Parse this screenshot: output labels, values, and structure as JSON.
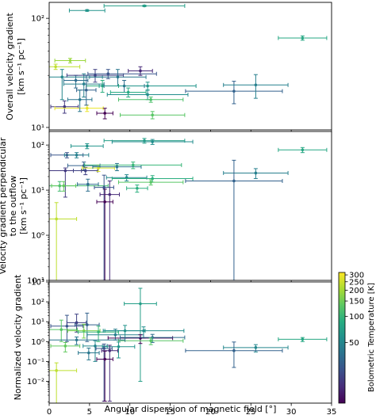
{
  "chart_data": [
    {
      "type": "scatter",
      "ylabel_lines": [
        "Overall velocity gradient",
        "[km s⁻¹ pc⁻¹]"
      ],
      "yscale": "log",
      "ylim": [
        9.5,
        140
      ],
      "yticks": [
        {
          "v": 10,
          "label": "10¹"
        },
        {
          "v": 100,
          "label": "10²"
        }
      ],
      "points": [
        {
          "x": 4.7,
          "y": 118,
          "xe": [
            2.2,
            2.2
          ],
          "ye": [
            2,
            2
          ],
          "t": 60
        },
        {
          "x": 11.8,
          "y": 130,
          "xe": [
            5,
            5
          ],
          "ye": [
            2,
            2
          ],
          "t": 70
        },
        {
          "x": 31.4,
          "y": 66,
          "xe": [
            3,
            3
          ],
          "ye": [
            3,
            3
          ],
          "t": 80
        },
        {
          "x": 2.6,
          "y": 41,
          "xe": [
            1.9,
            1.9
          ],
          "ye": [
            2,
            2
          ],
          "t": 190
        },
        {
          "x": 0.8,
          "y": 36,
          "xe": [
            0.8,
            3
          ],
          "ye": [
            2,
            2
          ],
          "t": 230
        },
        {
          "x": 1.6,
          "y": 29,
          "xe": [
            1.6,
            5
          ],
          "ye": [
            11,
            5
          ],
          "t": 50
        },
        {
          "x": 3.3,
          "y": 27,
          "xe": [
            1.5,
            1.5
          ],
          "ye": [
            4,
            3
          ],
          "t": 35
        },
        {
          "x": 4.3,
          "y": 25,
          "xe": [
            2.5,
            2.5
          ],
          "ye": [
            6,
            6
          ],
          "t": 45
        },
        {
          "x": 5.7,
          "y": 30,
          "xe": [
            3.5,
            3.5
          ],
          "ye": [
            4,
            4
          ],
          "t": 20
        },
        {
          "x": 8.5,
          "y": 29,
          "xe": [
            3.5,
            3.5
          ],
          "ye": [
            5,
            5
          ],
          "t": 40
        },
        {
          "x": 7.3,
          "y": 31,
          "xe": [
            2.5,
            6
          ],
          "ye": [
            3,
            3
          ],
          "t": 25
        },
        {
          "x": 11.3,
          "y": 33,
          "xe": [
            1.5,
            1.5
          ],
          "ye": [
            3,
            3
          ],
          "t": 15
        },
        {
          "x": 6.6,
          "y": 24,
          "xe": [
            2,
            2
          ],
          "ye": [
            3,
            3
          ],
          "t": 90
        },
        {
          "x": 9.3,
          "y": 24,
          "xe": [
            2.5,
            2.5
          ],
          "ye": [
            3,
            3
          ],
          "t": 35
        },
        {
          "x": 12.2,
          "y": 20,
          "xe": [
            5,
            5
          ],
          "ye": [
            2,
            2
          ],
          "t": 55
        },
        {
          "x": 9.8,
          "y": 21,
          "xe": [
            2.2,
            2.2
          ],
          "ye": [
            2,
            2
          ],
          "t": 85
        },
        {
          "x": 12.2,
          "y": 24,
          "xe": [
            6,
            6
          ],
          "ye": [
            2,
            2
          ],
          "t": 60
        },
        {
          "x": 12.6,
          "y": 18,
          "xe": [
            4,
            4
          ],
          "ye": [
            1,
            1
          ],
          "t": 120
        },
        {
          "x": 12.8,
          "y": 13,
          "xe": [
            4,
            4
          ],
          "ye": [
            1,
            1
          ],
          "t": 130
        },
        {
          "x": 22.9,
          "y": 21.5,
          "xe": [
            6,
            6
          ],
          "ye": [
            5,
            5
          ],
          "t": 30
        },
        {
          "x": 25.6,
          "y": 24.5,
          "xe": [
            4,
            4
          ],
          "ye": [
            6,
            6
          ],
          "t": 45
        },
        {
          "x": 1.9,
          "y": 15.5,
          "xe": [
            1.7,
            1.7
          ],
          "ye": [
            2,
            2
          ],
          "t": 18
        },
        {
          "x": 4.7,
          "y": 15,
          "xe": [
            4,
            2
          ],
          "ye": [
            1,
            1
          ],
          "t": 290
        },
        {
          "x": 6.9,
          "y": 13.5,
          "xe": [
            1,
            1
          ],
          "ye": [
            1.5,
            1.5
          ],
          "t": 10
        },
        {
          "x": 4.6,
          "y": 22,
          "xe": [
            1.2,
            1.2
          ],
          "ye": [
            6,
            8
          ],
          "t": 30
        },
        {
          "x": 3.8,
          "y": 18,
          "xe": [
            1.5,
            1.5
          ],
          "ye": [
            4,
            4
          ],
          "t": 40
        }
      ]
    },
    {
      "type": "scatter",
      "ylabel_lines": [
        "Velocity gradient perpendicular",
        "to the outflow",
        "[km s⁻¹ pc⁻¹]"
      ],
      "yscale": "log",
      "ylim": [
        0.1,
        200
      ],
      "yticks": [
        {
          "v": 0.1,
          "label": "10⁻¹"
        },
        {
          "v": 1,
          "label": "10⁰"
        },
        {
          "v": 10,
          "label": "10¹"
        },
        {
          "v": 100,
          "label": "10²"
        }
      ],
      "points": [
        {
          "x": 31.4,
          "y": 78,
          "xe": [
            3,
            3
          ],
          "ye": [
            10,
            10
          ],
          "t": 80
        },
        {
          "x": 11.8,
          "y": 125,
          "xe": [
            5,
            5
          ],
          "ye": [
            15,
            15
          ],
          "t": 70
        },
        {
          "x": 12.8,
          "y": 118,
          "xe": [
            5,
            5
          ],
          "ye": [
            15,
            15
          ],
          "t": 55
        },
        {
          "x": 4.7,
          "y": 95,
          "xe": [
            2,
            2
          ],
          "ye": [
            12,
            12
          ],
          "t": 60
        },
        {
          "x": 2.2,
          "y": 60,
          "xe": [
            2,
            2
          ],
          "ye": [
            8,
            8
          ],
          "t": 25
        },
        {
          "x": 3.4,
          "y": 60,
          "xe": [
            1.5,
            1.5
          ],
          "ye": [
            8,
            8
          ],
          "t": 45
        },
        {
          "x": 4.3,
          "y": 35,
          "xe": [
            2,
            2
          ],
          "ye": [
            7,
            7
          ],
          "t": 30
        },
        {
          "x": 2.0,
          "y": 27,
          "xe": [
            2,
            2
          ],
          "ye": [
            20,
            4
          ],
          "t": 18
        },
        {
          "x": 4.5,
          "y": 27,
          "xe": [
            1.5,
            1.5
          ],
          "ye": [
            5,
            5
          ],
          "t": 20
        },
        {
          "x": 6.1,
          "y": 31,
          "xe": [
            2,
            2
          ],
          "ye": [
            5,
            5
          ],
          "t": 260
        },
        {
          "x": 8.4,
          "y": 33,
          "xe": [
            3,
            3
          ],
          "ye": [
            6,
            6
          ],
          "t": 40
        },
        {
          "x": 10.4,
          "y": 36,
          "xe": [
            6,
            6
          ],
          "ye": [
            6,
            6
          ],
          "t": 100
        },
        {
          "x": 9.6,
          "y": 19,
          "xe": [
            2.5,
            2.5
          ],
          "ye": [
            3,
            3
          ],
          "t": 50
        },
        {
          "x": 12.8,
          "y": 18,
          "xe": [
            5,
            5
          ],
          "ye": [
            3,
            3
          ],
          "t": 90
        },
        {
          "x": 12.6,
          "y": 15,
          "xe": [
            4,
            4
          ],
          "ye": [
            2,
            2
          ],
          "t": 130
        },
        {
          "x": 25.6,
          "y": 24,
          "xe": [
            4,
            4
          ],
          "ye": [
            6,
            6
          ],
          "t": 45
        },
        {
          "x": 22.9,
          "y": 16,
          "xe": [
            6,
            6
          ],
          "ye": [
            15.9,
            30
          ],
          "t": 30
        },
        {
          "x": 1.3,
          "y": 12.5,
          "xe": [
            1.3,
            6
          ],
          "ye": [
            3,
            3
          ],
          "t": 110
        },
        {
          "x": 1.8,
          "y": 12.5,
          "xe": [
            1.5,
            1.5
          ],
          "ye": [
            3,
            3
          ],
          "t": 140
        },
        {
          "x": 4.8,
          "y": 13.5,
          "xe": [
            1.3,
            1.3
          ],
          "ye": [
            4,
            4
          ],
          "t": 35
        },
        {
          "x": 6.8,
          "y": 11.5,
          "xe": [
            1.2,
            1.2
          ],
          "ye": [
            11.4,
            10
          ],
          "t": 25
        },
        {
          "x": 7.5,
          "y": 8,
          "xe": [
            1.2,
            1.2
          ],
          "ye": [
            7.9,
            8
          ],
          "t": 15
        },
        {
          "x": 6.9,
          "y": 5.5,
          "xe": [
            1,
            1
          ],
          "ye": [
            5.4,
            5
          ],
          "t": 10
        },
        {
          "x": 10.9,
          "y": 11,
          "xe": [
            1.3,
            1.3
          ],
          "ye": [
            2,
            2
          ],
          "t": 90
        },
        {
          "x": 0.9,
          "y": 2.3,
          "xe": [
            0.9,
            2.5
          ],
          "ye": [
            2.25,
            3
          ],
          "t": 230
        }
      ]
    },
    {
      "type": "scatter",
      "ylabel_lines": [
        "Normalized velocity gradient"
      ],
      "xlabel": "Angular dispersion of magnetic field [°]",
      "yscale": "log",
      "ylim": [
        0.0008,
        1000
      ],
      "yticks": [
        {
          "v": 0.01,
          "label": "10⁻²"
        },
        {
          "v": 0.1,
          "label": "10⁻¹"
        },
        {
          "v": 1,
          "label": "10⁰"
        },
        {
          "v": 10,
          "label": "10¹"
        },
        {
          "v": 100,
          "label": "10²"
        },
        {
          "v": 1000,
          "label": "10³"
        }
      ],
      "xticks": [
        0,
        5,
        10,
        15,
        20,
        25,
        30,
        35
      ],
      "points": [
        {
          "x": 11.3,
          "y": 80,
          "xe": [
            2,
            2
          ],
          "ye": [
            79.99,
            400
          ],
          "t": 70
        },
        {
          "x": 4.7,
          "y": 7,
          "xe": [
            1.5,
            1.5
          ],
          "ye": [
            6,
            20
          ],
          "t": 30
        },
        {
          "x": 2.2,
          "y": 6,
          "xe": [
            2,
            2
          ],
          "ye": [
            5,
            15
          ],
          "t": 25
        },
        {
          "x": 3.4,
          "y": 9,
          "xe": [
            1.2,
            1.2
          ],
          "ye": [
            6,
            15
          ],
          "t": 20
        },
        {
          "x": 1.5,
          "y": 4,
          "xe": [
            1.5,
            2
          ],
          "ye": [
            3,
            8
          ],
          "t": 130
        },
        {
          "x": 4.3,
          "y": 3.5,
          "xe": [
            2,
            2
          ],
          "ye": [
            2,
            4
          ],
          "t": 160
        },
        {
          "x": 6.1,
          "y": 3,
          "xe": [
            2.5,
            2.5
          ],
          "ye": [
            2,
            3
          ],
          "t": 100
        },
        {
          "x": 9.4,
          "y": 3.5,
          "xe": [
            2.5,
            2.5
          ],
          "ye": [
            2,
            3
          ],
          "t": 60
        },
        {
          "x": 11.7,
          "y": 3.5,
          "xe": [
            5,
            5
          ],
          "ye": [
            2,
            2
          ],
          "t": 55
        },
        {
          "x": 8.2,
          "y": 2.2,
          "xe": [
            3.5,
            3.5
          ],
          "ye": [
            1,
            2
          ],
          "t": 45
        },
        {
          "x": 11.3,
          "y": 1.5,
          "xe": [
            4,
            4
          ],
          "ye": [
            0.7,
            0.7
          ],
          "t": 10
        },
        {
          "x": 12.8,
          "y": 1.6,
          "xe": [
            4,
            4
          ],
          "ye": [
            0.7,
            0.7
          ],
          "t": 35
        },
        {
          "x": 12.6,
          "y": 1.1,
          "xe": [
            4,
            4
          ],
          "ye": [
            0.4,
            0.4
          ],
          "t": 130
        },
        {
          "x": 31.4,
          "y": 1.3,
          "xe": [
            3,
            3
          ],
          "ye": [
            0.3,
            0.3
          ],
          "t": 80
        },
        {
          "x": 25.6,
          "y": 0.5,
          "xe": [
            4,
            4
          ],
          "ye": [
            0.2,
            0.2
          ],
          "t": 50
        },
        {
          "x": 22.9,
          "y": 0.35,
          "xe": [
            6,
            6
          ],
          "ye": [
            0.3,
            0.6
          ],
          "t": 30
        },
        {
          "x": 3.4,
          "y": 1.2,
          "xe": [
            3.4,
            6
          ],
          "ye": [
            0.5,
            0.5
          ],
          "t": 40
        },
        {
          "x": 2.0,
          "y": 0.6,
          "xe": [
            1.8,
            1.8
          ],
          "ye": [
            0.3,
            0.3
          ],
          "t": 140
        },
        {
          "x": 5.7,
          "y": 0.6,
          "xe": [
            1.5,
            1.5
          ],
          "ye": [
            0.5,
            0.5
          ],
          "t": 50
        },
        {
          "x": 8.6,
          "y": 0.55,
          "xe": [
            2,
            2
          ],
          "ye": [
            0.4,
            0.4
          ],
          "t": 60
        },
        {
          "x": 4.9,
          "y": 0.27,
          "xe": [
            1.3,
            1.3
          ],
          "ye": [
            0.15,
            0.2
          ],
          "t": 40
        },
        {
          "x": 6.8,
          "y": 0.45,
          "xe": [
            1,
            1
          ],
          "ye": [
            0.449,
            0.3
          ],
          "t": 25
        },
        {
          "x": 7.5,
          "y": 0.35,
          "xe": [
            1,
            1
          ],
          "ye": [
            0.349,
            0.3
          ],
          "t": 15
        },
        {
          "x": 6.9,
          "y": 0.13,
          "xe": [
            1,
            1
          ],
          "ye": [
            0.129,
            0.2
          ],
          "t": 10
        },
        {
          "x": 0.9,
          "y": 0.035,
          "xe": [
            0.9,
            2.5
          ],
          "ye": [
            0.0349,
            0.05
          ],
          "t": 230
        }
      ]
    }
  ],
  "colorbar": {
    "label": "Bolometric Temperature [K]",
    "ticks": [
      50,
      100,
      150,
      200,
      250,
      300
    ],
    "range": [
      10,
      320
    ],
    "colormap": [
      "#440154",
      "#472c7a",
      "#3b518b",
      "#2c718e",
      "#21908d",
      "#27ad81",
      "#5cc863",
      "#aadc32",
      "#fde725"
    ]
  }
}
